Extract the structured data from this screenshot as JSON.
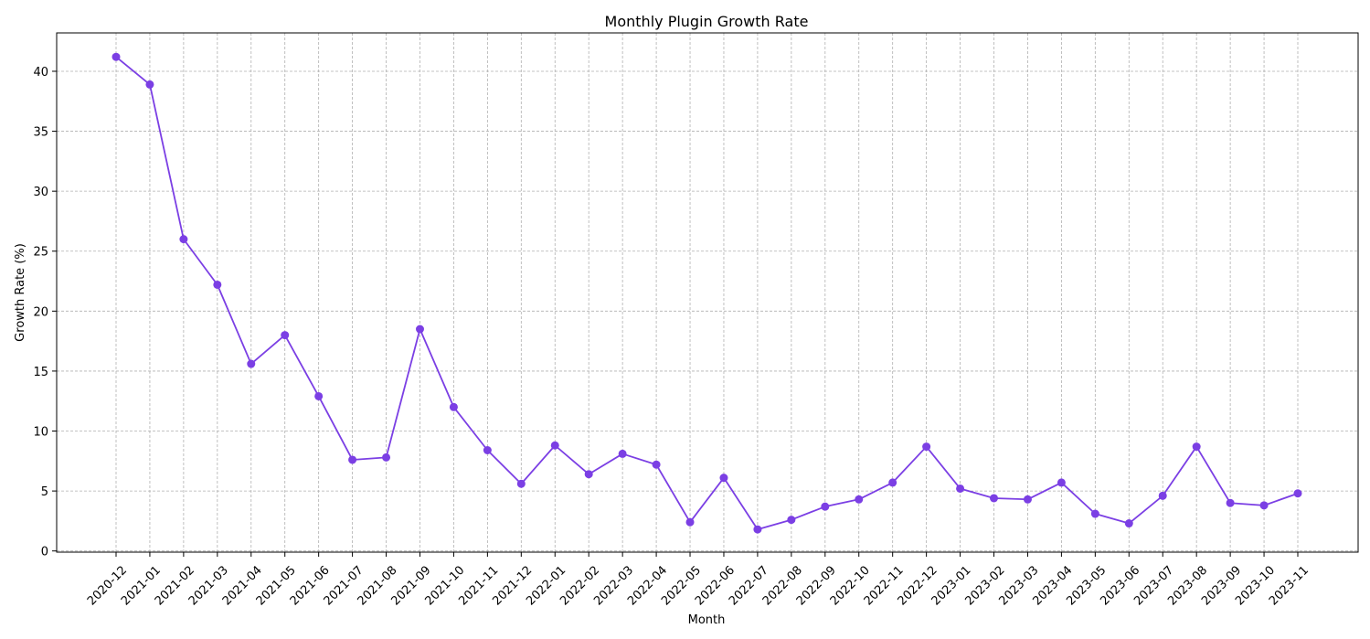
{
  "chart_data": {
    "type": "line",
    "title": "Monthly Plugin Growth Rate",
    "xlabel": "Month",
    "ylabel": "Growth Rate (%)",
    "ylim": [
      -0.1,
      43.2
    ],
    "y_ticks": [
      0,
      5,
      10,
      15,
      20,
      25,
      30,
      35,
      40
    ],
    "grid": true,
    "legend": "none",
    "line_color": "#7b3fe4",
    "categories": [
      "2020-12",
      "2021-01",
      "2021-02",
      "2021-03",
      "2021-04",
      "2021-05",
      "2021-06",
      "2021-07",
      "2021-08",
      "2021-09",
      "2021-10",
      "2021-11",
      "2021-12",
      "2022-01",
      "2022-02",
      "2022-03",
      "2022-04",
      "2022-05",
      "2022-06",
      "2022-07",
      "2022-08",
      "2022-09",
      "2022-10",
      "2022-11",
      "2022-12",
      "2023-01",
      "2023-02",
      "2023-03",
      "2023-04",
      "2023-05",
      "2023-06",
      "2023-07",
      "2023-08",
      "2023-09",
      "2023-10",
      "2023-11"
    ],
    "series": [
      {
        "values": [
          41.2,
          38.9,
          26.0,
          22.2,
          15.6,
          18.0,
          12.9,
          7.6,
          7.8,
          18.5,
          12.0,
          8.4,
          5.6,
          8.8,
          6.4,
          8.1,
          7.2,
          2.4,
          6.1,
          1.8,
          2.6,
          3.7,
          4.3,
          5.7,
          8.7,
          5.2,
          4.4,
          4.3,
          5.7,
          3.1,
          2.3,
          4.6,
          8.7,
          4.0,
          3.8,
          4.8
        ]
      }
    ]
  }
}
